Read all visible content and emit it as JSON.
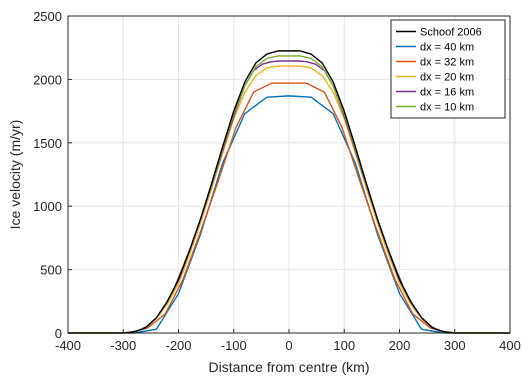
{
  "chart_data": {
    "type": "line",
    "xlabel": "Distance from centre (km)",
    "ylabel": "Ice velocity (m/yr)",
    "xlim": [
      -400,
      400
    ],
    "ylim": [
      0,
      2500
    ],
    "xticks": [
      -400,
      -300,
      -200,
      -100,
      0,
      100,
      200,
      300,
      400
    ],
    "yticks": [
      0,
      500,
      1000,
      1500,
      2000,
      2500
    ],
    "grid": true,
    "legend_position": "top-right",
    "series": [
      {
        "name": "Schoof 2006",
        "color": "#000000",
        "x": [
          -400,
          -300,
          -280,
          -260,
          -240,
          -220,
          -200,
          -180,
          -160,
          -140,
          -120,
          -100,
          -80,
          -60,
          -40,
          -20,
          0,
          20,
          40,
          60,
          80,
          100,
          120,
          140,
          160,
          180,
          200,
          220,
          240,
          260,
          280,
          300,
          400
        ],
        "y": [
          0,
          0,
          10,
          40,
          120,
          250,
          420,
          650,
          900,
          1180,
          1470,
          1750,
          1980,
          2130,
          2200,
          2225,
          2225,
          2225,
          2200,
          2130,
          1980,
          1750,
          1470,
          1180,
          900,
          650,
          420,
          250,
          120,
          40,
          10,
          0,
          0
        ]
      },
      {
        "name": "dx = 40 km",
        "color": "#0072bd",
        "x": [
          -400,
          -280,
          -240,
          -200,
          -160,
          -120,
          -80,
          -40,
          0,
          40,
          80,
          120,
          160,
          200,
          240,
          280,
          400
        ],
        "y": [
          0,
          0,
          30,
          310,
          780,
          1340,
          1730,
          1860,
          1870,
          1860,
          1730,
          1340,
          780,
          310,
          30,
          0,
          0
        ]
      },
      {
        "name": "dx = 32 km",
        "color": "#d95319",
        "x": [
          -400,
          -288,
          -256,
          -224,
          -192,
          -160,
          -128,
          -96,
          -64,
          -32,
          0,
          32,
          64,
          96,
          128,
          160,
          192,
          224,
          256,
          288,
          400
        ],
        "y": [
          0,
          0,
          40,
          150,
          420,
          800,
          1200,
          1620,
          1900,
          1970,
          1970,
          1970,
          1900,
          1620,
          1200,
          800,
          420,
          150,
          40,
          0,
          0
        ]
      },
      {
        "name": "dx = 20 km",
        "color": "#edb120",
        "x": [
          -400,
          -300,
          -280,
          -260,
          -240,
          -220,
          -200,
          -180,
          -160,
          -140,
          -120,
          -100,
          -80,
          -60,
          -40,
          -20,
          0,
          20,
          40,
          60,
          80,
          100,
          120,
          140,
          160,
          180,
          200,
          220,
          240,
          260,
          280,
          300,
          400
        ],
        "y": [
          0,
          0,
          8,
          40,
          115,
          230,
          390,
          620,
          870,
          1140,
          1420,
          1690,
          1900,
          2030,
          2090,
          2105,
          2105,
          2105,
          2090,
          2030,
          1900,
          1690,
          1420,
          1140,
          870,
          620,
          390,
          230,
          115,
          40,
          8,
          0,
          0
        ]
      },
      {
        "name": "dx = 16 km",
        "color": "#7e2f8e",
        "x": [
          -400,
          -304,
          -288,
          -272,
          -256,
          -240,
          -224,
          -208,
          -192,
          -176,
          -160,
          -144,
          -128,
          -112,
          -96,
          -80,
          -64,
          -48,
          -32,
          -16,
          0,
          16,
          32,
          48,
          64,
          80,
          96,
          112,
          128,
          144,
          160,
          176,
          192,
          208,
          224,
          240,
          256,
          272,
          288,
          304,
          400
        ],
        "y": [
          0,
          0,
          5,
          20,
          55,
          120,
          220,
          350,
          520,
          700,
          900,
          1110,
          1330,
          1550,
          1760,
          1950,
          2070,
          2120,
          2140,
          2145,
          2145,
          2145,
          2140,
          2120,
          2070,
          1950,
          1760,
          1550,
          1330,
          1110,
          900,
          700,
          520,
          350,
          220,
          120,
          55,
          20,
          5,
          0,
          0
        ]
      },
      {
        "name": "dx = 10 km",
        "color": "#77ac30",
        "x": [
          -400,
          -300,
          -280,
          -260,
          -240,
          -220,
          -200,
          -180,
          -160,
          -140,
          -120,
          -100,
          -80,
          -60,
          -40,
          -20,
          0,
          20,
          40,
          60,
          80,
          100,
          120,
          140,
          160,
          180,
          200,
          220,
          240,
          260,
          280,
          300,
          400
        ],
        "y": [
          0,
          0,
          10,
          40,
          120,
          245,
          415,
          645,
          895,
          1170,
          1455,
          1730,
          1950,
          2100,
          2165,
          2185,
          2185,
          2185,
          2165,
          2100,
          1950,
          1730,
          1455,
          1170,
          895,
          645,
          415,
          245,
          120,
          40,
          10,
          0,
          0
        ]
      }
    ]
  }
}
